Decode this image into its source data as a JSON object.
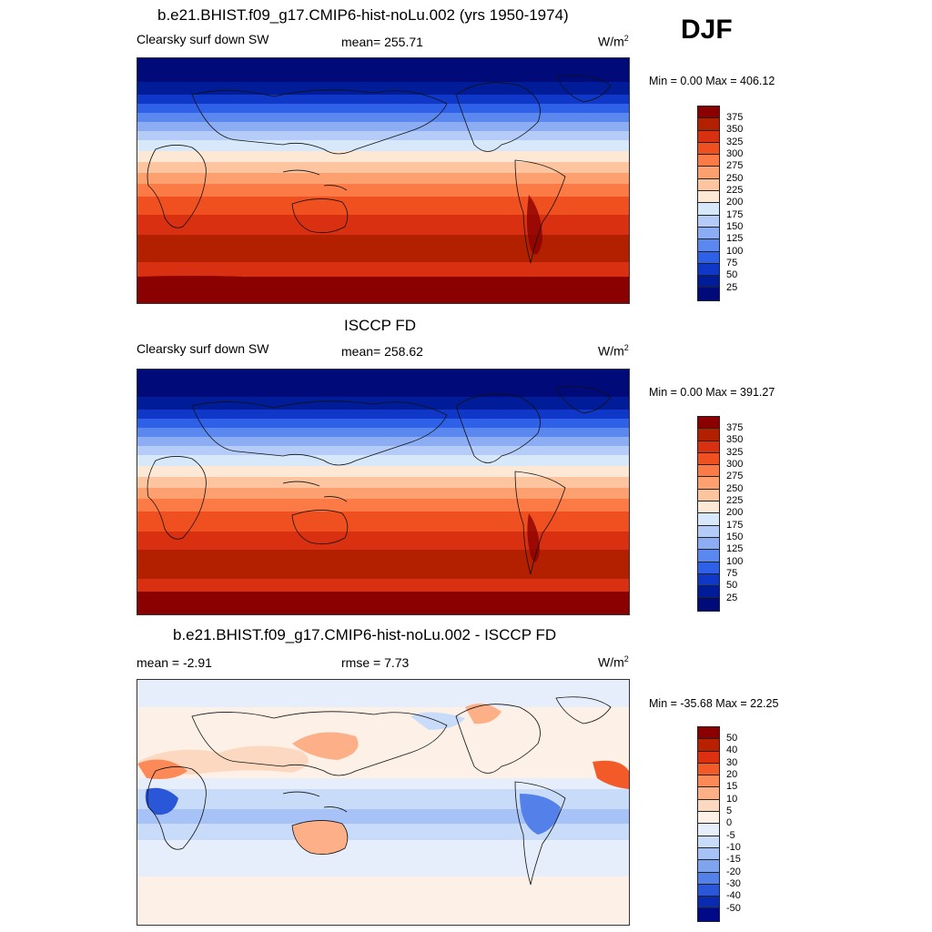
{
  "season": "DJF",
  "panels": [
    {
      "title": "b.e21.BHIST.f09_g17.CMIP6-hist-noLu.002 (yrs 1950-1974)",
      "left_label": "Clearsky surf down SW",
      "center_label": "mean= 255.71",
      "units": "W/m",
      "units_sup": "2",
      "minmax": "Min =   0.00 Max = 406.12",
      "colorbar_ticks": [
        "375",
        "350",
        "325",
        "300",
        "275",
        "250",
        "225",
        "200",
        "175",
        "150",
        "125",
        "100",
        "75",
        "50",
        "25"
      ]
    },
    {
      "title": "ISCCP FD",
      "left_label": "Clearsky surf down SW",
      "center_label": "mean= 258.62",
      "units": "W/m",
      "units_sup": "2",
      "minmax": "Min =   0.00 Max = 391.27",
      "colorbar_ticks": [
        "375",
        "350",
        "325",
        "300",
        "275",
        "250",
        "225",
        "200",
        "175",
        "150",
        "125",
        "100",
        "75",
        "50",
        "25"
      ]
    },
    {
      "title": "b.e21.BHIST.f09_g17.CMIP6-hist-noLu.002 - ISCCP FD",
      "left_label": "mean =  -2.91",
      "center_label": "rmse =   7.73",
      "units": "W/m",
      "units_sup": "2",
      "minmax": "Min = -35.68 Max =  22.25",
      "colorbar_ticks": [
        "50",
        "40",
        "30",
        "20",
        "15",
        "10",
        "5",
        "0",
        "-5",
        "-10",
        "-15",
        "-20",
        "-30",
        "-40",
        "-50"
      ]
    }
  ],
  "colors": {
    "abs_scale": [
      "#8b0000",
      "#b22000",
      "#d83010",
      "#f05020",
      "#fc7a45",
      "#fda070",
      "#fdc4a0",
      "#fde8d6",
      "#d8e8fb",
      "#b4ccf7",
      "#8cacf3",
      "#5a88ef",
      "#2e60e8",
      "#1038c8",
      "#001c98",
      "#000a78"
    ],
    "diff_scale": [
      "#8b0000",
      "#b82000",
      "#dc3010",
      "#f25a28",
      "#fc8a58",
      "#fdb088",
      "#fdd8c0",
      "#fdf0e6",
      "#e6eefc",
      "#c8dcfa",
      "#a6c2f6",
      "#7ea4f0",
      "#5480ea",
      "#2a56d8",
      "#0a2ab0",
      "#000a88"
    ]
  }
}
